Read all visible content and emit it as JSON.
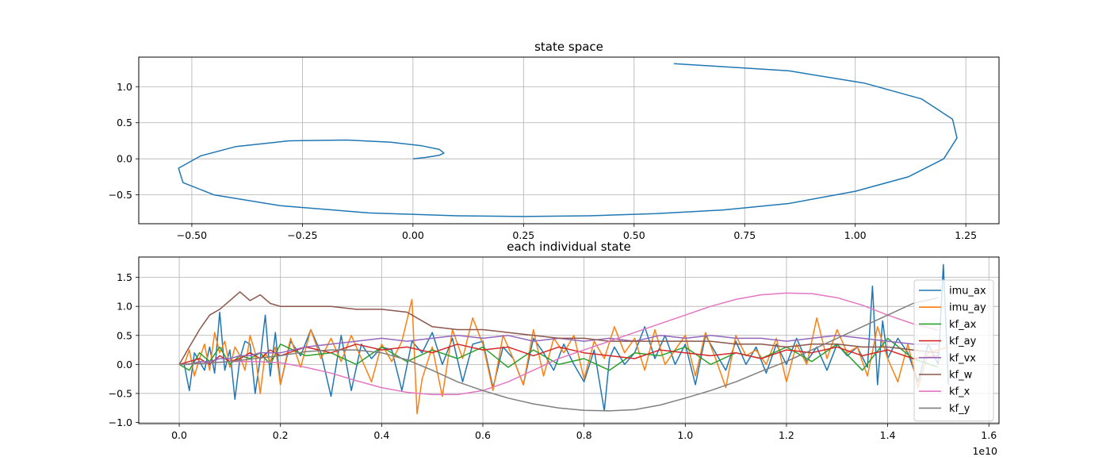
{
  "chart_data": [
    {
      "type": "line",
      "title": "state space",
      "xlabel": "",
      "ylabel": "",
      "xlim": [
        -0.62,
        1.325
      ],
      "ylim": [
        -0.9,
        1.41
      ],
      "xticks": [
        -0.5,
        -0.25,
        0.0,
        0.25,
        0.5,
        0.75,
        1.0,
        1.25
      ],
      "xtick_labels": [
        "−0.50",
        "−0.25",
        "0.00",
        "0.25",
        "0.50",
        "0.75",
        "1.00",
        "1.25"
      ],
      "yticks": [
        -0.5,
        0.0,
        0.5,
        1.0
      ],
      "ytick_labels": [
        "−0.5",
        "0.0",
        "0.5",
        "1.0"
      ],
      "grid": true,
      "series": [
        {
          "color": "#1f77b4",
          "x": [
            0.0,
            0.03,
            0.06,
            0.07,
            0.06,
            0.02,
            -0.05,
            -0.15,
            -0.28,
            -0.4,
            -0.48,
            -0.53,
            -0.52,
            -0.45,
            -0.3,
            -0.1,
            0.1,
            0.25,
            0.4,
            0.55,
            0.7,
            0.85,
            1.0,
            1.12,
            1.2,
            1.23,
            1.22,
            1.15,
            1.02,
            0.85,
            0.59
          ],
          "y": [
            0.0,
            0.02,
            0.05,
            0.08,
            0.13,
            0.18,
            0.23,
            0.26,
            0.25,
            0.17,
            0.04,
            -0.13,
            -0.33,
            -0.5,
            -0.65,
            -0.75,
            -0.79,
            -0.8,
            -0.79,
            -0.76,
            -0.71,
            -0.62,
            -0.45,
            -0.25,
            0.0,
            0.29,
            0.55,
            0.83,
            1.05,
            1.22,
            1.32
          ]
        }
      ]
    },
    {
      "type": "line",
      "title": "each individual state",
      "xlabel": "",
      "ylabel": "",
      "x_offset_label": "1e10",
      "xlim": [
        -0.08,
        1.62
      ],
      "ylim": [
        -1.02,
        1.85
      ],
      "xticks": [
        0.0,
        0.2,
        0.4,
        0.6,
        0.8,
        1.0,
        1.2,
        1.4,
        1.6
      ],
      "xtick_labels": [
        "0.0",
        "0.2",
        "0.4",
        "0.6",
        "0.8",
        "1.0",
        "1.2",
        "1.4",
        "1.6"
      ],
      "yticks": [
        -1.0,
        -0.5,
        0.0,
        0.5,
        1.0,
        1.5
      ],
      "ytick_labels": [
        "−1.0",
        "−0.5",
        "0.0",
        "0.5",
        "1.0",
        "1.5"
      ],
      "grid": true,
      "legend_position": "right",
      "series": [
        {
          "name": "imu_ax",
          "color": "#1f77b4",
          "x": [
            0,
            0.01,
            0.02,
            0.03,
            0.04,
            0.05,
            0.06,
            0.07,
            0.08,
            0.09,
            0.1,
            0.11,
            0.12,
            0.13,
            0.14,
            0.15,
            0.16,
            0.17,
            0.18,
            0.19,
            0.2,
            0.22,
            0.24,
            0.26,
            0.28,
            0.3,
            0.32,
            0.34,
            0.36,
            0.38,
            0.4,
            0.42,
            0.44,
            0.46,
            0.48,
            0.5,
            0.52,
            0.54,
            0.56,
            0.58,
            0.6,
            0.62,
            0.64,
            0.66,
            0.68,
            0.7,
            0.72,
            0.74,
            0.76,
            0.78,
            0.8,
            0.82,
            0.84,
            0.85,
            0.86,
            0.88,
            0.9,
            0.92,
            0.94,
            0.96,
            0.98,
            1.0,
            1.02,
            1.04,
            1.06,
            1.08,
            1.1,
            1.12,
            1.14,
            1.16,
            1.18,
            1.2,
            1.22,
            1.24,
            1.26,
            1.28,
            1.3,
            1.32,
            1.34,
            1.36,
            1.37,
            1.38,
            1.39,
            1.4,
            1.42,
            1.44,
            1.46,
            1.48,
            1.5,
            1.51,
            1.52
          ],
          "y": [
            0.0,
            0.0,
            -0.45,
            0.2,
            0.05,
            -0.1,
            0.3,
            -0.15,
            0.9,
            -0.1,
            0.25,
            -0.6,
            0.1,
            0.4,
            0.35,
            -0.5,
            0.1,
            0.85,
            -0.2,
            0.55,
            -0.35,
            0.4,
            0.15,
            0.6,
            0.2,
            -0.55,
            0.5,
            -0.45,
            0.35,
            0.1,
            0.3,
            0.25,
            -0.45,
            0.4,
            0.2,
            0.55,
            0.0,
            0.45,
            -0.3,
            0.35,
            0.4,
            -0.4,
            0.3,
            0.1,
            -0.35,
            0.45,
            0.2,
            -0.1,
            0.35,
            0.0,
            -0.3,
            0.25,
            -0.8,
            0.1,
            0.3,
            0.0,
            0.2,
            0.65,
            0.1,
            0.5,
            0.0,
            0.35,
            -0.35,
            0.5,
            0.2,
            -0.1,
            0.4,
            0.0,
            0.3,
            -0.15,
            0.35,
            0.0,
            0.45,
            0.05,
            0.3,
            -0.1,
            0.35,
            0.15,
            0.3,
            -0.05,
            1.35,
            -0.35,
            0.75,
            0.1,
            0.45,
            0.2,
            -0.3,
            0.35,
            0.0,
            1.72,
            -0.35
          ]
        },
        {
          "name": "imu_ay",
          "color": "#ff7f0e",
          "x": [
            0,
            0.01,
            0.02,
            0.03,
            0.04,
            0.05,
            0.06,
            0.07,
            0.08,
            0.09,
            0.1,
            0.11,
            0.12,
            0.13,
            0.14,
            0.15,
            0.16,
            0.17,
            0.18,
            0.19,
            0.2,
            0.22,
            0.24,
            0.26,
            0.28,
            0.3,
            0.32,
            0.34,
            0.36,
            0.38,
            0.4,
            0.42,
            0.44,
            0.46,
            0.47,
            0.48,
            0.5,
            0.52,
            0.54,
            0.56,
            0.58,
            0.6,
            0.62,
            0.64,
            0.66,
            0.68,
            0.7,
            0.72,
            0.74,
            0.76,
            0.78,
            0.8,
            0.82,
            0.84,
            0.86,
            0.88,
            0.9,
            0.92,
            0.94,
            0.96,
            0.98,
            1.0,
            1.02,
            1.04,
            1.06,
            1.08,
            1.1,
            1.12,
            1.14,
            1.16,
            1.18,
            1.2,
            1.22,
            1.24,
            1.26,
            1.28,
            1.3,
            1.32,
            1.34,
            1.36,
            1.38,
            1.4,
            1.42,
            1.44,
            1.46,
            1.48,
            1.5,
            1.52
          ],
          "y": [
            0.0,
            0.0,
            0.25,
            -0.2,
            0.1,
            0.35,
            -0.1,
            0.55,
            0.2,
            0.4,
            -0.05,
            0.3,
            0.15,
            -0.1,
            0.5,
            0.2,
            -0.5,
            0.2,
            0.05,
            0.3,
            -0.35,
            0.45,
            -0.05,
            0.6,
            0.1,
            0.45,
            0.05,
            0.5,
            0.1,
            -0.3,
            0.35,
            0.05,
            0.4,
            1.12,
            -0.85,
            -0.25,
            0.3,
            -0.55,
            0.6,
            0.1,
            0.8,
            0.35,
            -0.45,
            0.5,
            0.1,
            -0.35,
            0.6,
            -0.2,
            0.45,
            0.2,
            0.5,
            -0.25,
            0.4,
            0.1,
            0.65,
            0.2,
            0.45,
            -0.1,
            0.6,
            0.0,
            0.25,
            0.5,
            -0.2,
            0.55,
            0.1,
            -0.4,
            0.5,
            0.15,
            0.25,
            0.0,
            0.45,
            -0.3,
            0.35,
            0.0,
            0.8,
            0.1,
            0.6,
            0.2,
            0.3,
            -0.2,
            0.65,
            0.1,
            -0.3,
            0.35,
            -0.4,
            0.2,
            0.25,
            0.3
          ]
        },
        {
          "name": "kf_ax",
          "color": "#2ca02c",
          "x": [
            0,
            0.02,
            0.04,
            0.06,
            0.08,
            0.1,
            0.12,
            0.14,
            0.16,
            0.18,
            0.2,
            0.25,
            0.3,
            0.35,
            0.4,
            0.45,
            0.5,
            0.55,
            0.6,
            0.65,
            0.7,
            0.75,
            0.8,
            0.85,
            0.9,
            0.95,
            1.0,
            1.05,
            1.1,
            1.15,
            1.2,
            1.25,
            1.3,
            1.35,
            1.4,
            1.45,
            1.5
          ],
          "y": [
            0.0,
            -0.1,
            0.2,
            0.05,
            0.3,
            0.0,
            0.15,
            0.1,
            0.2,
            0.0,
            0.35,
            0.15,
            0.2,
            0.0,
            0.3,
            0.05,
            0.25,
            0.1,
            0.3,
            -0.05,
            0.25,
            0.0,
            0.1,
            -0.1,
            0.2,
            0.15,
            0.3,
            0.0,
            0.2,
            0.1,
            0.3,
            0.05,
            0.35,
            -0.1,
            0.45,
            0.1,
            -0.05
          ]
        },
        {
          "name": "kf_ay",
          "color": "#d62728",
          "x": [
            0,
            0.02,
            0.04,
            0.06,
            0.08,
            0.1,
            0.12,
            0.14,
            0.16,
            0.18,
            0.2,
            0.25,
            0.3,
            0.35,
            0.4,
            0.45,
            0.5,
            0.55,
            0.6,
            0.65,
            0.7,
            0.75,
            0.8,
            0.85,
            0.9,
            0.95,
            1.0,
            1.05,
            1.1,
            1.15,
            1.2,
            1.25,
            1.3,
            1.35,
            1.4,
            1.45,
            1.5
          ],
          "y": [
            0.0,
            0.05,
            0.1,
            0.0,
            0.15,
            0.05,
            0.1,
            0.2,
            0.1,
            0.25,
            0.15,
            0.3,
            0.2,
            0.35,
            0.25,
            0.3,
            0.2,
            0.35,
            0.25,
            0.3,
            0.15,
            0.3,
            0.2,
            0.15,
            0.1,
            0.25,
            0.2,
            0.15,
            0.2,
            0.1,
            0.25,
            0.2,
            0.3,
            0.15,
            0.25,
            0.1,
            0.15
          ]
        },
        {
          "name": "kf_vx",
          "color": "#9467bd",
          "x": [
            0,
            0.02,
            0.04,
            0.06,
            0.08,
            0.1,
            0.12,
            0.14,
            0.16,
            0.18,
            0.2,
            0.25,
            0.3,
            0.35,
            0.4,
            0.45,
            0.5,
            0.55,
            0.6,
            0.65,
            0.7,
            0.75,
            0.8,
            0.85,
            0.9,
            0.95,
            1.0,
            1.05,
            1.1,
            1.15,
            1.2,
            1.25,
            1.3,
            1.35,
            1.4,
            1.45,
            1.5
          ],
          "y": [
            0.0,
            0.0,
            0.05,
            0.05,
            0.1,
            0.1,
            0.15,
            0.15,
            0.2,
            0.2,
            0.2,
            0.3,
            0.35,
            0.4,
            0.45,
            0.4,
            0.45,
            0.5,
            0.45,
            0.5,
            0.4,
            0.45,
            0.4,
            0.45,
            0.4,
            0.5,
            0.45,
            0.5,
            0.45,
            0.45,
            0.4,
            0.45,
            0.5,
            0.45,
            0.4,
            0.35,
            0.35
          ]
        },
        {
          "name": "kf_w",
          "color": "#8c564b",
          "x": [
            0,
            0.02,
            0.04,
            0.06,
            0.08,
            0.1,
            0.12,
            0.14,
            0.16,
            0.18,
            0.2,
            0.25,
            0.3,
            0.35,
            0.4,
            0.45,
            0.5,
            0.55,
            0.6,
            0.65,
            0.7,
            0.75,
            0.8,
            0.85,
            0.9,
            0.95,
            1.0,
            1.05,
            1.1,
            1.15,
            1.2,
            1.25,
            1.3,
            1.35,
            1.4,
            1.45,
            1.5
          ],
          "y": [
            0.0,
            0.3,
            0.6,
            0.85,
            0.95,
            1.1,
            1.25,
            1.1,
            1.2,
            1.05,
            1.0,
            1.0,
            1.0,
            0.95,
            0.95,
            0.9,
            0.65,
            0.6,
            0.6,
            0.55,
            0.5,
            0.45,
            0.45,
            0.4,
            0.4,
            0.4,
            0.4,
            0.4,
            0.35,
            0.35,
            0.3,
            0.35,
            0.35,
            0.3,
            0.3,
            0.25,
            0.2
          ]
        },
        {
          "name": "kf_x",
          "color": "#e377c2",
          "x": [
            0,
            0.05,
            0.1,
            0.15,
            0.2,
            0.25,
            0.3,
            0.35,
            0.4,
            0.45,
            0.5,
            0.55,
            0.6,
            0.65,
            0.7,
            0.75,
            0.8,
            0.85,
            0.9,
            0.95,
            1.0,
            1.05,
            1.1,
            1.15,
            1.2,
            1.25,
            1.3,
            1.35,
            1.4,
            1.45,
            1.5
          ],
          "y": [
            0.0,
            0.02,
            0.05,
            0.05,
            0.03,
            -0.05,
            -0.15,
            -0.28,
            -0.4,
            -0.48,
            -0.52,
            -0.52,
            -0.45,
            -0.3,
            -0.1,
            0.1,
            0.25,
            0.4,
            0.55,
            0.7,
            0.85,
            1.0,
            1.12,
            1.2,
            1.23,
            1.22,
            1.15,
            1.02,
            0.85,
            0.7,
            0.59
          ]
        },
        {
          "name": "kf_y",
          "color": "#7f7f7f",
          "x": [
            0,
            0.05,
            0.1,
            0.15,
            0.2,
            0.25,
            0.3,
            0.35,
            0.4,
            0.45,
            0.5,
            0.55,
            0.6,
            0.65,
            0.7,
            0.75,
            0.8,
            0.85,
            0.9,
            0.95,
            1.0,
            1.05,
            1.1,
            1.15,
            1.2,
            1.25,
            1.3,
            1.35,
            1.4,
            1.45,
            1.5
          ],
          "y": [
            0.0,
            0.02,
            0.05,
            0.1,
            0.15,
            0.22,
            0.25,
            0.25,
            0.2,
            0.08,
            -0.1,
            -0.3,
            -0.45,
            -0.58,
            -0.68,
            -0.75,
            -0.79,
            -0.8,
            -0.78,
            -0.7,
            -0.58,
            -0.45,
            -0.3,
            -0.12,
            0.05,
            0.25,
            0.45,
            0.65,
            0.85,
            1.05,
            1.15
          ]
        }
      ]
    }
  ]
}
